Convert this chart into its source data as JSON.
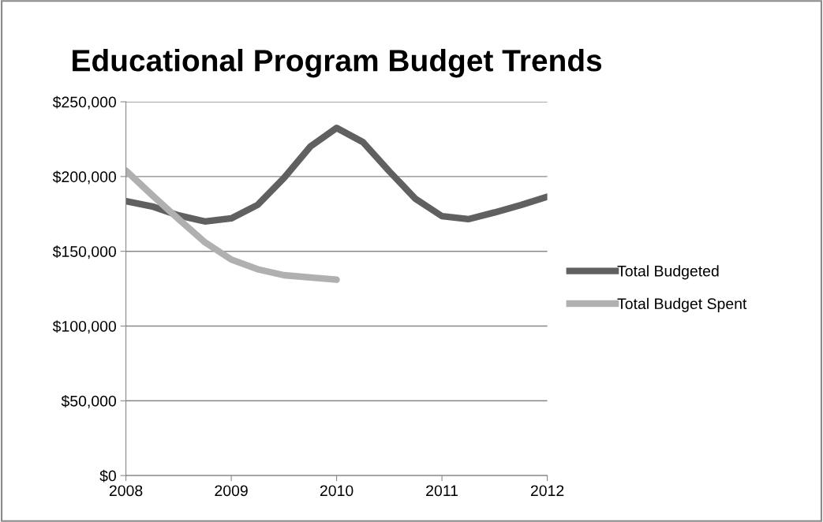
{
  "chart_data": {
    "type": "line",
    "title": "Educational Program Budget Trends",
    "x": [
      2008,
      2008.25,
      2008.5,
      2008.75,
      2009,
      2009.25,
      2009.5,
      2009.75,
      2010,
      2010.25,
      2010.5,
      2010.75,
      2011,
      2011.25,
      2011.5,
      2011.75,
      2012
    ],
    "series": [
      {
        "name": "Total Budgeted",
        "color": "#606060",
        "values": [
          183500,
          180000,
          174000,
          170000,
          172000,
          181000,
          199000,
          220000,
          232500,
          223000,
          203500,
          185000,
          173500,
          171500,
          176000,
          181000,
          186500
        ]
      },
      {
        "name": "Total Budget Spent",
        "color": "#b0b0b0",
        "values": [
          204000,
          187500,
          171500,
          156000,
          144500,
          138000,
          134000,
          132500,
          131000,
          null,
          null,
          null,
          null,
          null,
          null,
          null,
          null
        ]
      }
    ],
    "xlim": [
      2008,
      2012
    ],
    "xticks": [
      2008,
      2009,
      2010,
      2011,
      2012
    ],
    "ylim": [
      0,
      250000
    ],
    "yticks": [
      {
        "value": 0,
        "label": "$0"
      },
      {
        "value": 50000,
        "label": "$50,000"
      },
      {
        "value": 100000,
        "label": "$100,000"
      },
      {
        "value": 150000,
        "label": "$150,000"
      },
      {
        "value": 200000,
        "label": "$200,000"
      },
      {
        "value": 250000,
        "label": "$250,000"
      }
    ],
    "grid": "y",
    "legend": "right",
    "marker": "none",
    "line_style": "solid"
  }
}
